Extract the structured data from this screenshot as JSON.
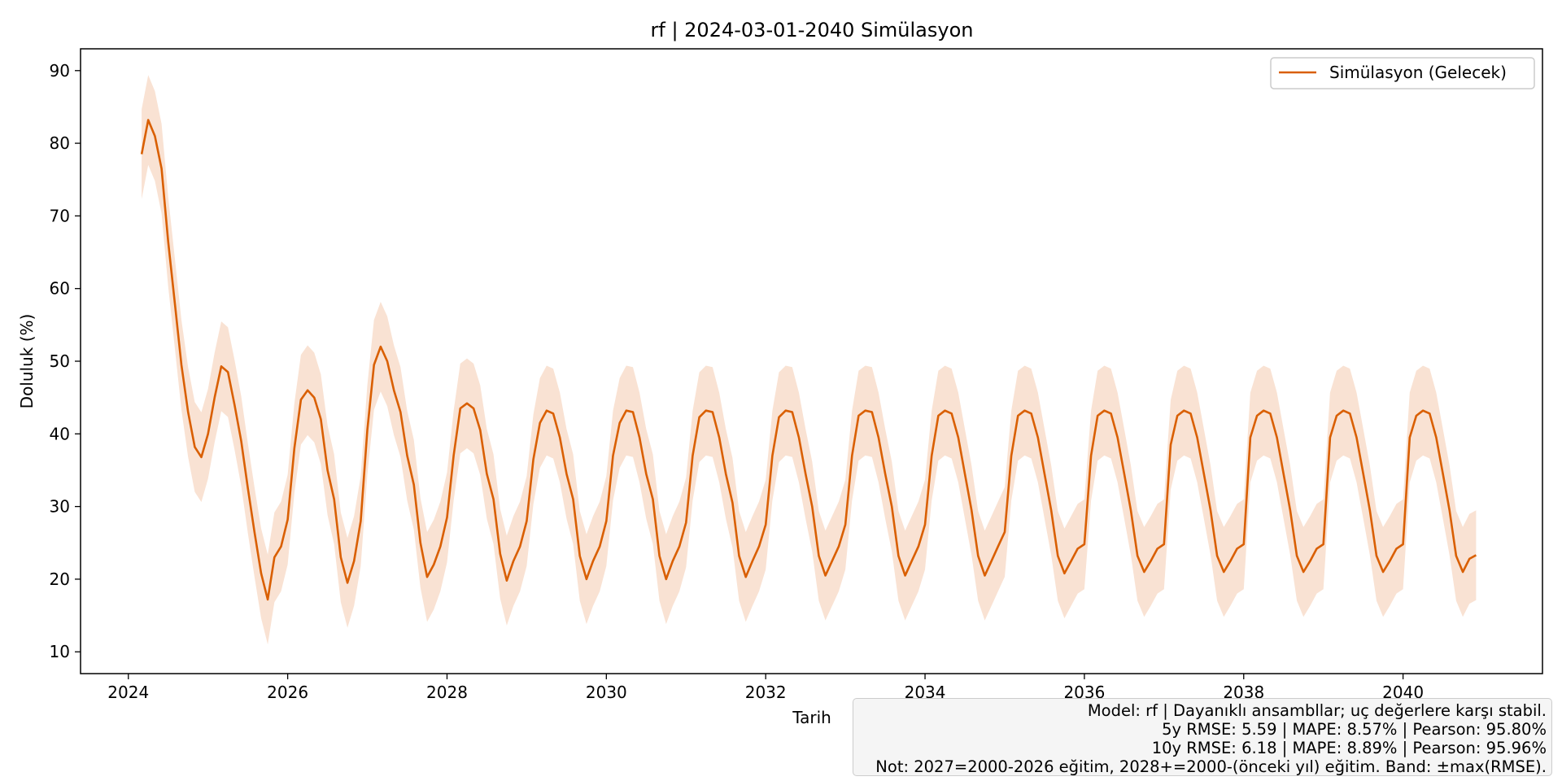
{
  "chart_data": {
    "type": "line",
    "title": "rf | 2024-03-01-2040 Simülasyon",
    "xlabel": "Tarih",
    "ylabel": "Doluluk (%)",
    "xlim": [
      2023.4,
      2041.75
    ],
    "ylim": [
      7,
      93
    ],
    "x_ticks": [
      2024,
      2026,
      2028,
      2030,
      2032,
      2034,
      2036,
      2038,
      2040
    ],
    "x_tick_labels": [
      "2024",
      "2026",
      "2028",
      "2030",
      "2032",
      "2034",
      "2036",
      "2038",
      "2040"
    ],
    "y_ticks": [
      10,
      20,
      30,
      40,
      50,
      60,
      70,
      80,
      90
    ],
    "y_tick_labels": [
      "10",
      "20",
      "30",
      "40",
      "50",
      "60",
      "70",
      "80",
      "90"
    ],
    "grid": false,
    "legend_position": "top-right",
    "band_half_width": 6.18,
    "series": [
      {
        "name": "Simülasyon (Gelecek)",
        "start": "2024-03",
        "frequency": "monthly",
        "values": [
          78.5,
          83.2,
          81.0,
          76.5,
          66.5,
          58.0,
          49.5,
          43.0,
          38.2,
          36.8,
          40.0,
          45.0,
          49.3,
          48.5,
          44.0,
          39.0,
          32.5,
          26.5,
          20.8,
          17.2,
          23.0,
          24.5,
          28.2,
          38.0,
          44.7,
          46.0,
          45.0,
          42.0,
          35.0,
          31.0,
          23.0,
          19.5,
          22.5,
          28.0,
          40.5,
          49.5,
          52.0,
          50.0,
          46.0,
          43.0,
          37.0,
          33.0,
          25.0,
          20.3,
          22.0,
          24.5,
          28.5,
          37.0,
          43.5,
          44.2,
          43.5,
          40.5,
          34.5,
          31.0,
          23.5,
          19.8,
          22.5,
          24.5,
          28.0,
          36.5,
          41.5,
          43.2,
          42.8,
          39.5,
          34.5,
          31.0,
          23.2,
          20.0,
          22.5,
          24.5,
          28.0,
          37.0,
          41.5,
          43.2,
          43.0,
          39.5,
          34.5,
          31.0,
          23.2,
          20.0,
          22.5,
          24.5,
          27.8,
          37.0,
          42.3,
          43.2,
          43.0,
          39.5,
          34.5,
          30.5,
          23.2,
          20.3,
          22.5,
          24.5,
          27.5,
          37.0,
          42.3,
          43.2,
          43.0,
          39.5,
          34.5,
          30.0,
          23.2,
          20.5,
          22.5,
          24.5,
          27.5,
          37.0,
          42.5,
          43.2,
          43.0,
          39.5,
          34.5,
          30.0,
          23.2,
          20.5,
          22.5,
          24.5,
          27.5,
          37.0,
          42.5,
          43.2,
          42.8,
          39.5,
          34.5,
          29.5,
          23.2,
          20.5,
          22.5,
          24.5,
          26.5,
          37.0,
          42.5,
          43.2,
          42.8,
          39.5,
          34.5,
          29.5,
          23.2,
          20.8,
          22.5,
          24.2,
          24.8,
          37.0,
          42.5,
          43.2,
          42.8,
          39.5,
          34.5,
          29.5,
          23.2,
          21.0,
          22.5,
          24.2,
          24.8,
          38.5,
          42.5,
          43.2,
          42.8,
          39.5,
          34.5,
          29.5,
          23.2,
          21.0,
          22.5,
          24.2,
          24.8,
          39.5,
          42.5,
          43.2,
          42.8,
          39.5,
          34.5,
          29.5,
          23.2,
          21.0,
          22.5,
          24.2,
          24.8,
          39.5,
          42.5,
          43.2,
          42.8,
          39.5,
          34.5,
          29.5,
          23.2,
          21.0,
          22.5,
          24.2,
          24.8,
          39.5,
          42.5,
          43.2,
          42.8,
          39.5,
          34.5,
          29.5,
          23.2,
          21.0,
          22.8,
          23.3
        ]
      }
    ]
  },
  "info_box": {
    "line1": "Model: rf | Dayanıklı ansambllar; uç değerlere karşı stabil.",
    "line2": "5y RMSE: 5.59 | MAPE: 8.57% | Pearson: 95.80%",
    "line3": "10y RMSE: 6.18 | MAPE: 8.89% | Pearson: 95.96%",
    "line4": "Not: 2027=2000-2026 eğitim, 2028+=2000-(önceki yıl) eğitim. Band: ±max(RMSE)."
  },
  "colors": {
    "line": "#d95f02",
    "band": "#f9e2d3",
    "axis": "#000000",
    "legend_border": "#cccccc"
  }
}
